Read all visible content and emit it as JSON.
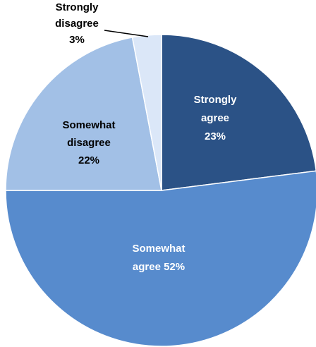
{
  "chart_data": {
    "type": "pie",
    "title": "",
    "start_angle_deg": 0,
    "direction": "clockwise",
    "slices": [
      {
        "label_lines": [
          "Strongly",
          "agree",
          "23%"
        ],
        "value": 23,
        "color": "#2b5286",
        "text_color": "#ffffff"
      },
      {
        "label_lines": [
          "Somewhat",
          "agree 52%"
        ],
        "value": 52,
        "color": "#578bcd",
        "text_color": "#ffffff"
      },
      {
        "label_lines": [
          "Somewhat",
          "disagree",
          "22%"
        ],
        "value": 22,
        "color": "#a2c0e6",
        "text_color": "#000000"
      },
      {
        "label_lines": [
          "Strongly",
          "disagree",
          "3%"
        ],
        "value": 3,
        "color": "#dbe7f8",
        "text_color": "#000000",
        "label_outside": true
      }
    ]
  }
}
